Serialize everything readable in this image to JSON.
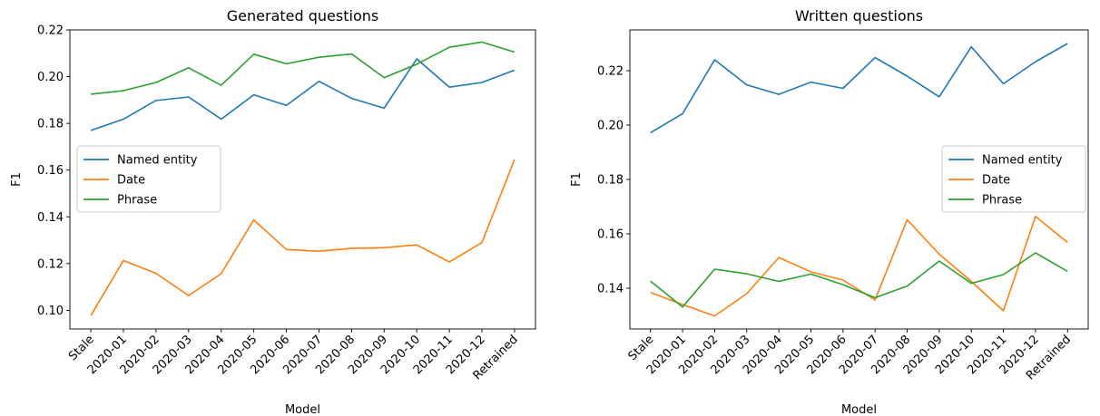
{
  "colors": {
    "named_entity": "#1f77b4",
    "date": "#ff7f0e",
    "phrase": "#2ca02c"
  },
  "chart_data": [
    {
      "type": "line",
      "title": "Generated questions",
      "xlabel": "Model",
      "ylabel": "F1",
      "categories": [
        "Stale",
        "2020-01",
        "2020-02",
        "2020-03",
        "2020-04",
        "2020-05",
        "2020-06",
        "2020-07",
        "2020-08",
        "2020-09",
        "2020-10",
        "2020-11",
        "2020-12",
        "Retrained"
      ],
      "ylim": [
        0.092,
        0.22
      ],
      "yticks": [
        0.1,
        0.12,
        0.14,
        0.16,
        0.18,
        0.2,
        0.22
      ],
      "ytick_labels": [
        "0.10",
        "0.12",
        "0.14",
        "0.16",
        "0.18",
        "0.20",
        "0.22"
      ],
      "legend": "center-left",
      "series": [
        {
          "name": "Named entity",
          "color": "#1f77b4",
          "values": [
            0.177,
            0.1818,
            0.1898,
            0.1913,
            0.1818,
            0.1922,
            0.1877,
            0.198,
            0.1907,
            0.1865,
            0.2076,
            0.1955,
            0.1975,
            0.2028
          ]
        },
        {
          "name": "Date",
          "color": "#ff7f0e",
          "values": [
            0.0978,
            0.1213,
            0.1158,
            0.1063,
            0.1157,
            0.1387,
            0.126,
            0.1253,
            0.1265,
            0.1268,
            0.128,
            0.1207,
            0.129,
            0.1645
          ]
        },
        {
          "name": "Phrase",
          "color": "#2ca02c",
          "values": [
            0.1925,
            0.194,
            0.1975,
            0.2038,
            0.1963,
            0.2096,
            0.2055,
            0.2083,
            0.2097,
            0.1996,
            0.2053,
            0.2126,
            0.2148,
            0.2105
          ]
        }
      ]
    },
    {
      "type": "line",
      "title": "Written questions",
      "xlabel": "Model",
      "ylabel": "F1",
      "categories": [
        "Stale",
        "2020-01",
        "2020-02",
        "2020-03",
        "2020-04",
        "2020-05",
        "2020-06",
        "2020-07",
        "2020-08",
        "2020-09",
        "2020-10",
        "2020-11",
        "2020-12",
        "Retrained"
      ],
      "ylim": [
        0.125,
        0.235
      ],
      "yticks": [
        0.14,
        0.16,
        0.18,
        0.2,
        0.22
      ],
      "ytick_labels": [
        "0.14",
        "0.16",
        "0.18",
        "0.20",
        "0.22"
      ],
      "legend": "center-right",
      "series": [
        {
          "name": "Named entity",
          "color": "#1f77b4",
          "values": [
            0.1972,
            0.2042,
            0.224,
            0.2148,
            0.2113,
            0.2158,
            0.2135,
            0.2248,
            0.218,
            0.2104,
            0.2288,
            0.2152,
            0.2233,
            0.23
          ]
        },
        {
          "name": "Date",
          "color": "#ff7f0e",
          "values": [
            0.1384,
            0.134,
            0.1298,
            0.138,
            0.1513,
            0.146,
            0.143,
            0.1357,
            0.1652,
            0.1525,
            0.1425,
            0.1317,
            0.1664,
            0.1568
          ]
        },
        {
          "name": "Phrase",
          "color": "#2ca02c",
          "values": [
            0.1426,
            0.1331,
            0.147,
            0.1453,
            0.1425,
            0.1452,
            0.1413,
            0.1365,
            0.1408,
            0.15,
            0.1418,
            0.145,
            0.153,
            0.1462
          ]
        }
      ]
    }
  ]
}
